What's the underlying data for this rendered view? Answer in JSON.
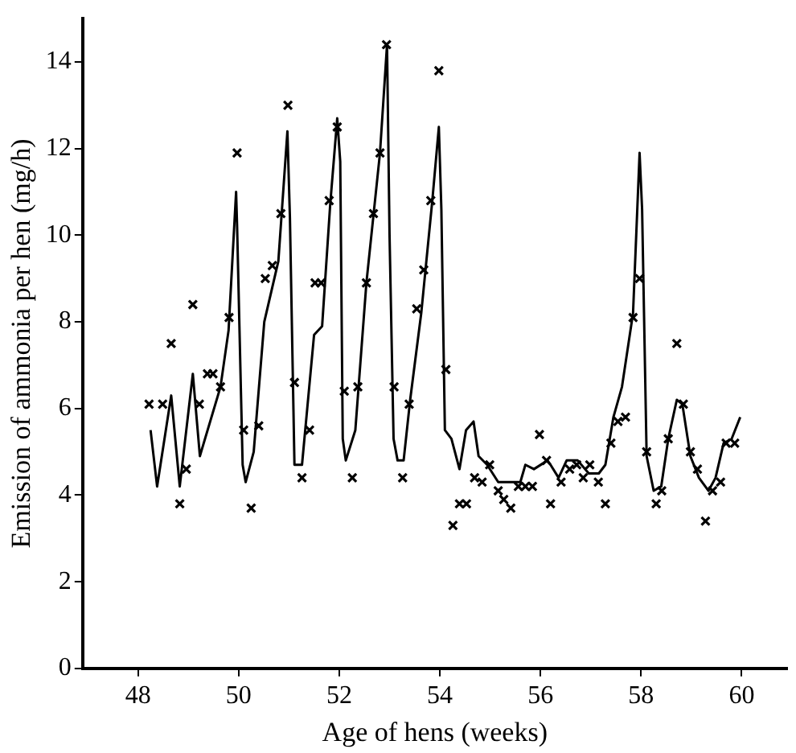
{
  "chart_data": {
    "type": "scatter",
    "xlabel": "Age of hens (weeks)",
    "ylabel": "Emission of ammonia per hen (mg/h)",
    "xlim": [
      46.9,
      60.9
    ],
    "xticks": [
      48,
      50,
      52,
      54,
      56,
      58,
      60
    ],
    "ylim": [
      0,
      15
    ],
    "yticks": [
      0,
      2,
      4,
      6,
      8,
      10,
      12,
      14
    ],
    "grid": false,
    "legend": false,
    "series": [
      {
        "type": "line",
        "color": "#000000",
        "marker": "none",
        "line_style": "solid",
        "x": [
          48.25,
          48.38,
          48.66,
          48.83,
          49.09,
          49.23,
          49.64,
          49.8,
          49.95,
          49.97,
          50.08,
          50.14,
          50.3,
          50.51,
          50.79,
          50.97,
          51.02,
          51.11,
          51.26,
          51.5,
          51.66,
          51.82,
          51.96,
          52.02,
          52.07,
          52.13,
          52.32,
          52.54,
          52.81,
          52.95,
          53.0,
          53.08,
          53.16,
          53.28,
          53.41,
          53.63,
          53.85,
          53.98,
          54.03,
          54.1,
          54.23,
          54.39,
          54.52,
          54.67,
          54.77,
          54.94,
          55.16,
          55.38,
          55.6,
          55.7,
          55.87,
          56.14,
          56.2,
          56.36,
          56.52,
          56.74,
          56.96,
          57.16,
          57.29,
          57.45,
          57.62,
          57.84,
          57.97,
          58.02,
          58.11,
          58.25,
          58.4,
          58.54,
          58.71,
          58.82,
          58.98,
          59.15,
          59.34,
          59.48,
          59.64,
          59.8,
          59.97
        ],
        "values": [
          5.5,
          4.2,
          6.3,
          4.2,
          6.8,
          4.9,
          6.5,
          7.8,
          11.0,
          10.2,
          4.7,
          4.3,
          5.0,
          8.0,
          9.4,
          12.4,
          10.4,
          4.7,
          4.7,
          7.7,
          7.9,
          10.7,
          12.7,
          11.7,
          5.3,
          4.8,
          5.5,
          8.9,
          11.9,
          14.4,
          10.0,
          5.3,
          4.8,
          4.8,
          6.2,
          8.2,
          10.8,
          12.5,
          10.6,
          5.5,
          5.3,
          4.6,
          5.5,
          5.7,
          4.9,
          4.7,
          4.3,
          4.3,
          4.3,
          4.7,
          4.6,
          4.8,
          4.7,
          4.4,
          4.8,
          4.8,
          4.5,
          4.5,
          4.7,
          5.8,
          6.5,
          8.2,
          11.9,
          10.6,
          4.9,
          4.1,
          4.2,
          5.3,
          6.2,
          6.1,
          4.9,
          4.4,
          4.1,
          4.4,
          5.2,
          5.3,
          5.8
        ]
      },
      {
        "color": "#000000",
        "marker": "cross",
        "x": [
          48.22,
          48.49,
          48.66,
          48.83,
          48.96,
          49.09,
          49.22,
          49.38,
          49.49,
          49.64,
          49.81,
          49.97,
          50.1,
          50.25,
          50.4,
          50.53,
          50.67,
          50.84,
          50.98,
          51.11,
          51.26,
          51.41,
          51.52,
          51.64,
          51.8,
          51.96,
          52.1,
          52.26,
          52.37,
          52.54,
          52.68,
          52.81,
          52.94,
          53.09,
          53.26,
          53.39,
          53.54,
          53.68,
          53.82,
          53.98,
          54.12,
          54.26,
          54.39,
          54.53,
          54.69,
          54.84,
          54.99,
          55.16,
          55.27,
          55.41,
          55.56,
          55.7,
          55.84,
          55.98,
          56.12,
          56.2,
          56.41,
          56.58,
          56.72,
          56.85,
          56.98,
          57.15,
          57.29,
          57.4,
          57.54,
          57.69,
          57.84,
          57.97,
          58.11,
          58.3,
          58.41,
          58.54,
          58.71,
          58.84,
          58.98,
          59.12,
          59.28,
          59.42,
          59.58,
          59.69,
          59.86
        ],
        "values": [
          6.1,
          6.1,
          7.5,
          3.8,
          4.6,
          8.4,
          6.1,
          6.8,
          6.8,
          6.5,
          8.1,
          11.9,
          5.5,
          3.7,
          5.6,
          9.0,
          9.3,
          10.5,
          13.0,
          6.6,
          4.4,
          5.5,
          8.9,
          8.9,
          10.8,
          12.5,
          6.4,
          4.4,
          6.5,
          8.9,
          10.5,
          11.9,
          14.4,
          6.5,
          4.4,
          6.1,
          8.3,
          9.2,
          10.8,
          13.8,
          6.9,
          3.3,
          3.8,
          3.8,
          4.4,
          4.3,
          4.7,
          4.1,
          3.9,
          3.7,
          4.2,
          4.2,
          4.2,
          5.4,
          4.8,
          3.8,
          4.3,
          4.6,
          4.7,
          4.4,
          4.7,
          4.3,
          3.8,
          5.2,
          5.7,
          5.8,
          8.1,
          9.0,
          5.0,
          3.8,
          4.1,
          5.3,
          7.5,
          6.1,
          5.0,
          4.6,
          3.4,
          4.1,
          4.3,
          5.2,
          5.2
        ]
      }
    ]
  }
}
